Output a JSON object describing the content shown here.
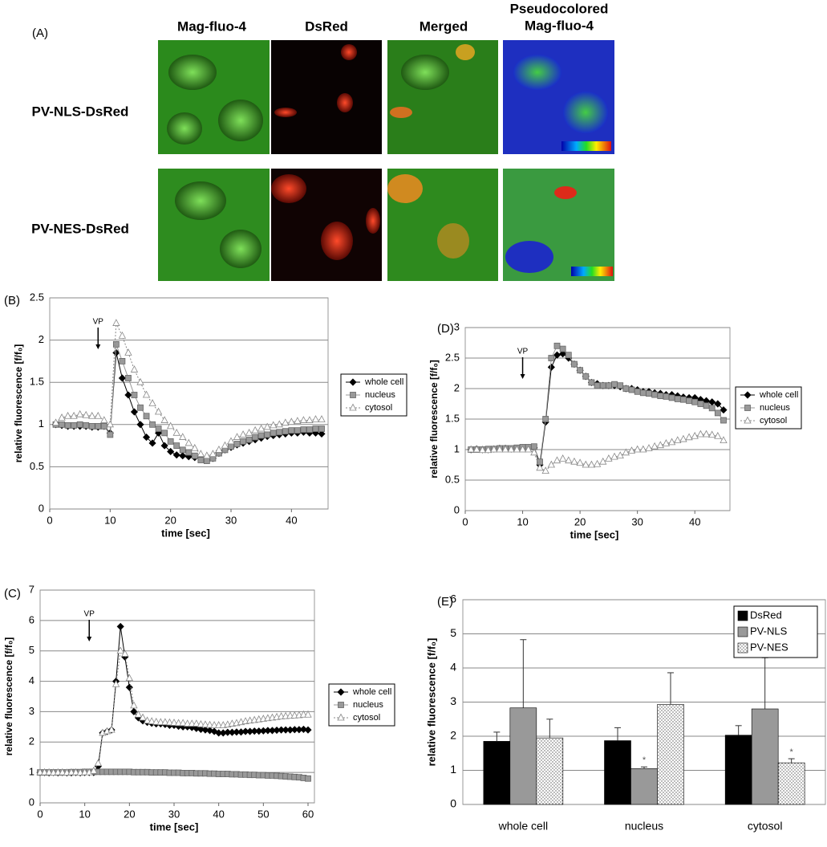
{
  "panel_a": {
    "label": "(A)",
    "columns": [
      "Mag-fluo-4",
      "DsRed",
      "Merged",
      "Pseudocolored",
      "Mag-fluo-4"
    ],
    "rows": [
      "PV-NLS-DsRed",
      "PV-NES-DsRed"
    ]
  },
  "chart_data": [
    {
      "type": "line",
      "label": "(B)",
      "xlabel": "time [sec]",
      "ylabel": "relative fluorescence [f/f₀]",
      "annotation": {
        "text": "VP",
        "x": 8
      },
      "xlim": [
        0,
        45
      ],
      "xticks": [
        0,
        10,
        20,
        30,
        40
      ],
      "ylim": [
        0,
        2.5
      ],
      "yticks": [
        0,
        0.5,
        1,
        1.5,
        2,
        2.5
      ],
      "grid": true,
      "x": [
        1,
        2,
        3,
        4,
        5,
        6,
        7,
        8,
        9,
        10,
        11,
        12,
        13,
        14,
        15,
        16,
        17,
        18,
        19,
        20,
        21,
        22,
        23,
        24,
        25,
        26,
        27,
        28,
        29,
        30,
        31,
        32,
        33,
        34,
        35,
        36,
        37,
        38,
        39,
        40,
        41,
        42,
        43,
        44,
        45
      ],
      "series": [
        {
          "name": "whole cell",
          "color": "#000000",
          "marker": "diamond",
          "values": [
            1.0,
            0.99,
            0.98,
            0.98,
            0.98,
            0.98,
            0.97,
            0.97,
            0.98,
            0.9,
            1.85,
            1.55,
            1.35,
            1.15,
            1.0,
            0.85,
            0.78,
            0.9,
            0.75,
            0.68,
            0.64,
            0.63,
            0.62,
            0.61,
            0.6,
            0.58,
            0.6,
            0.66,
            0.7,
            0.73,
            0.76,
            0.78,
            0.8,
            0.82,
            0.84,
            0.86,
            0.87,
            0.88,
            0.89,
            0.9,
            0.9,
            0.91,
            0.9,
            0.9,
            0.89
          ]
        },
        {
          "name": "nucleus",
          "color": "#999999",
          "marker": "square",
          "values": [
            1.0,
            1.0,
            0.99,
            0.99,
            1.0,
            0.99,
            0.98,
            0.98,
            0.98,
            0.88,
            1.95,
            1.75,
            1.55,
            1.35,
            1.2,
            1.1,
            1.0,
            0.95,
            0.9,
            0.8,
            0.75,
            0.7,
            0.67,
            0.63,
            0.58,
            0.57,
            0.6,
            0.66,
            0.7,
            0.74,
            0.77,
            0.8,
            0.82,
            0.85,
            0.87,
            0.88,
            0.9,
            0.91,
            0.92,
            0.93,
            0.93,
            0.94,
            0.94,
            0.95,
            0.95
          ]
        },
        {
          "name": "cytosol",
          "color": "#ffffff",
          "marker": "triangle",
          "dotted": true,
          "values": [
            1.02,
            1.08,
            1.1,
            1.1,
            1.12,
            1.11,
            1.1,
            1.1,
            1.05,
            1.0,
            2.2,
            2.05,
            1.85,
            1.65,
            1.5,
            1.35,
            1.25,
            1.15,
            1.05,
            0.98,
            0.9,
            0.85,
            0.78,
            0.72,
            0.65,
            0.63,
            0.65,
            0.7,
            0.75,
            0.8,
            0.85,
            0.88,
            0.9,
            0.93,
            0.95,
            0.97,
            0.99,
            1.0,
            1.02,
            1.03,
            1.04,
            1.05,
            1.05,
            1.06,
            1.06
          ]
        }
      ]
    },
    {
      "type": "line",
      "label": "(C)",
      "xlabel": "time [sec]",
      "ylabel": "relative fluorescence [f/f₀]",
      "annotation": {
        "text": "VP",
        "x": 11
      },
      "xlim": [
        0,
        60
      ],
      "xticks": [
        0,
        10,
        20,
        30,
        40,
        50,
        60
      ],
      "ylim": [
        0,
        7
      ],
      "yticks": [
        0,
        1,
        2,
        3,
        4,
        5,
        6,
        7
      ],
      "grid": true,
      "x": [
        0,
        1,
        2,
        3,
        4,
        5,
        6,
        7,
        8,
        9,
        10,
        11,
        12,
        13,
        14,
        15,
        16,
        17,
        18,
        19,
        20,
        21,
        22,
        23,
        24,
        25,
        26,
        27,
        28,
        29,
        30,
        31,
        32,
        33,
        34,
        35,
        36,
        37,
        38,
        39,
        40,
        41,
        42,
        43,
        44,
        45,
        46,
        47,
        48,
        49,
        50,
        51,
        52,
        53,
        54,
        55,
        56,
        57,
        58,
        59,
        60
      ],
      "series": [
        {
          "name": "whole cell",
          "color": "#000000",
          "marker": "diamond",
          "values": [
            1.0,
            1.0,
            0.99,
            1.0,
            0.99,
            1.0,
            0.99,
            0.99,
            1.0,
            0.99,
            1.0,
            1.0,
            1.0,
            1.2,
            2.3,
            2.35,
            2.4,
            4.0,
            5.8,
            4.8,
            3.8,
            3.0,
            2.8,
            2.7,
            2.65,
            2.62,
            2.6,
            2.6,
            2.58,
            2.55,
            2.55,
            2.52,
            2.5,
            2.5,
            2.48,
            2.45,
            2.42,
            2.4,
            2.38,
            2.35,
            2.3,
            2.3,
            2.32,
            2.32,
            2.33,
            2.33,
            2.35,
            2.35,
            2.36,
            2.36,
            2.37,
            2.38,
            2.38,
            2.39,
            2.4,
            2.4,
            2.4,
            2.41,
            2.41,
            2.42,
            2.4
          ]
        },
        {
          "name": "nucleus",
          "color": "#999999",
          "marker": "square",
          "values": [
            1.0,
            1.0,
            1.0,
            1.0,
            1.0,
            1.0,
            1.0,
            1.01,
            1.01,
            1.01,
            1.02,
            1.02,
            1.02,
            1.02,
            1.02,
            1.02,
            1.02,
            1.02,
            1.02,
            1.02,
            1.02,
            1.01,
            1.01,
            1.01,
            1.01,
            1.0,
            1.0,
            1.0,
            1.0,
            0.99,
            0.99,
            0.99,
            0.98,
            0.98,
            0.98,
            0.97,
            0.97,
            0.97,
            0.96,
            0.96,
            0.95,
            0.95,
            0.95,
            0.94,
            0.94,
            0.93,
            0.93,
            0.92,
            0.92,
            0.91,
            0.91,
            0.9,
            0.9,
            0.89,
            0.88,
            0.87,
            0.86,
            0.85,
            0.84,
            0.82,
            0.8
          ]
        },
        {
          "name": "cytosol",
          "color": "#ffffff",
          "marker": "triangle",
          "dotted": true,
          "values": [
            1.0,
            1.0,
            1.0,
            0.99,
            1.0,
            1.0,
            0.99,
            1.0,
            1.0,
            0.99,
            1.0,
            1.0,
            1.05,
            1.3,
            2.3,
            2.35,
            2.4,
            3.9,
            5.0,
            4.9,
            4.1,
            3.2,
            2.9,
            2.8,
            2.7,
            2.68,
            2.66,
            2.65,
            2.65,
            2.64,
            2.63,
            2.62,
            2.62,
            2.6,
            2.6,
            2.6,
            2.58,
            2.57,
            2.56,
            2.55,
            2.55,
            2.55,
            2.57,
            2.6,
            2.62,
            2.65,
            2.68,
            2.7,
            2.72,
            2.74,
            2.76,
            2.78,
            2.8,
            2.82,
            2.84,
            2.85,
            2.86,
            2.87,
            2.88,
            2.9,
            2.9
          ]
        }
      ]
    },
    {
      "type": "line",
      "label": "(D)",
      "xlabel": "time [sec]",
      "ylabel": "relative fluorescence [f/f₀]",
      "annotation": {
        "text": "VP",
        "x": 10
      },
      "xlim": [
        0,
        45
      ],
      "xticks": [
        0,
        10,
        20,
        30,
        40
      ],
      "ylim": [
        0,
        3
      ],
      "yticks": [
        0,
        0.5,
        1,
        1.5,
        2,
        2.5,
        3
      ],
      "grid": true,
      "x": [
        1,
        2,
        3,
        4,
        5,
        6,
        7,
        8,
        9,
        10,
        11,
        12,
        13,
        14,
        15,
        16,
        17,
        18,
        19,
        20,
        21,
        22,
        23,
        24,
        25,
        26,
        27,
        28,
        29,
        30,
        31,
        32,
        33,
        34,
        35,
        36,
        37,
        38,
        39,
        40,
        41,
        42,
        43,
        44,
        45
      ],
      "series": [
        {
          "name": "whole cell",
          "color": "#000000",
          "marker": "diamond",
          "values": [
            1.0,
            1.01,
            1.0,
            1.0,
            1.01,
            1.02,
            1.02,
            1.01,
            1.02,
            1.03,
            1.03,
            1.03,
            0.75,
            1.45,
            2.35,
            2.55,
            2.57,
            2.5,
            2.4,
            2.3,
            2.2,
            2.1,
            2.08,
            2.05,
            2.05,
            2.05,
            2.03,
            2.0,
            2.0,
            1.98,
            1.95,
            1.95,
            1.93,
            1.92,
            1.9,
            1.9,
            1.88,
            1.86,
            1.85,
            1.85,
            1.82,
            1.8,
            1.78,
            1.75,
            1.65
          ]
        },
        {
          "name": "nucleus",
          "color": "#999999",
          "marker": "square",
          "values": [
            1.0,
            1.0,
            1.0,
            1.01,
            1.01,
            1.02,
            1.02,
            1.02,
            1.03,
            1.04,
            1.04,
            1.05,
            0.8,
            1.5,
            2.5,
            2.7,
            2.65,
            2.55,
            2.4,
            2.3,
            2.2,
            2.1,
            2.05,
            2.05,
            2.05,
            2.07,
            2.05,
            2.0,
            1.98,
            1.95,
            1.93,
            1.92,
            1.9,
            1.88,
            1.87,
            1.85,
            1.83,
            1.82,
            1.8,
            1.78,
            1.75,
            1.72,
            1.68,
            1.6,
            1.48
          ]
        },
        {
          "name": "cytosol",
          "color": "#ffffff",
          "marker": "triangle",
          "dotted": true,
          "values": [
            1.0,
            1.0,
            0.99,
            0.99,
            1.0,
            1.0,
            1.0,
            1.0,
            1.0,
            1.0,
            1.0,
            0.95,
            0.7,
            0.65,
            0.75,
            0.82,
            0.85,
            0.82,
            0.8,
            0.78,
            0.75,
            0.75,
            0.76,
            0.8,
            0.85,
            0.88,
            0.9,
            0.95,
            0.98,
            1.0,
            1.0,
            1.02,
            1.05,
            1.07,
            1.1,
            1.12,
            1.15,
            1.17,
            1.2,
            1.22,
            1.25,
            1.25,
            1.24,
            1.22,
            1.15
          ]
        }
      ]
    },
    {
      "type": "bar",
      "label": "(E)",
      "ylabel": "relative fluorescence [f/f₀]",
      "annotations": [
        "*",
        "*"
      ],
      "categories": [
        "whole cell",
        "nucleus",
        "cytosol"
      ],
      "ylim": [
        0,
        6
      ],
      "yticks": [
        0,
        1,
        2,
        3,
        4,
        5,
        6
      ],
      "grid": true,
      "legend": "upper right",
      "series": [
        {
          "name": "DsRed",
          "color": "#000000",
          "values": [
            1.85,
            1.87,
            2.03
          ],
          "errors": [
            0.27,
            0.38,
            0.28
          ]
        },
        {
          "name": "PV-NLS",
          "color": "#999999",
          "values": [
            2.83,
            1.05,
            2.8
          ],
          "errors": [
            2.0,
            0.05,
            1.5
          ]
        },
        {
          "name": "PV-NES",
          "color": "#ffffff",
          "pattern": "dots",
          "values": [
            1.95,
            2.93,
            1.22
          ],
          "errors": [
            0.55,
            0.93,
            0.12
          ]
        }
      ]
    }
  ]
}
